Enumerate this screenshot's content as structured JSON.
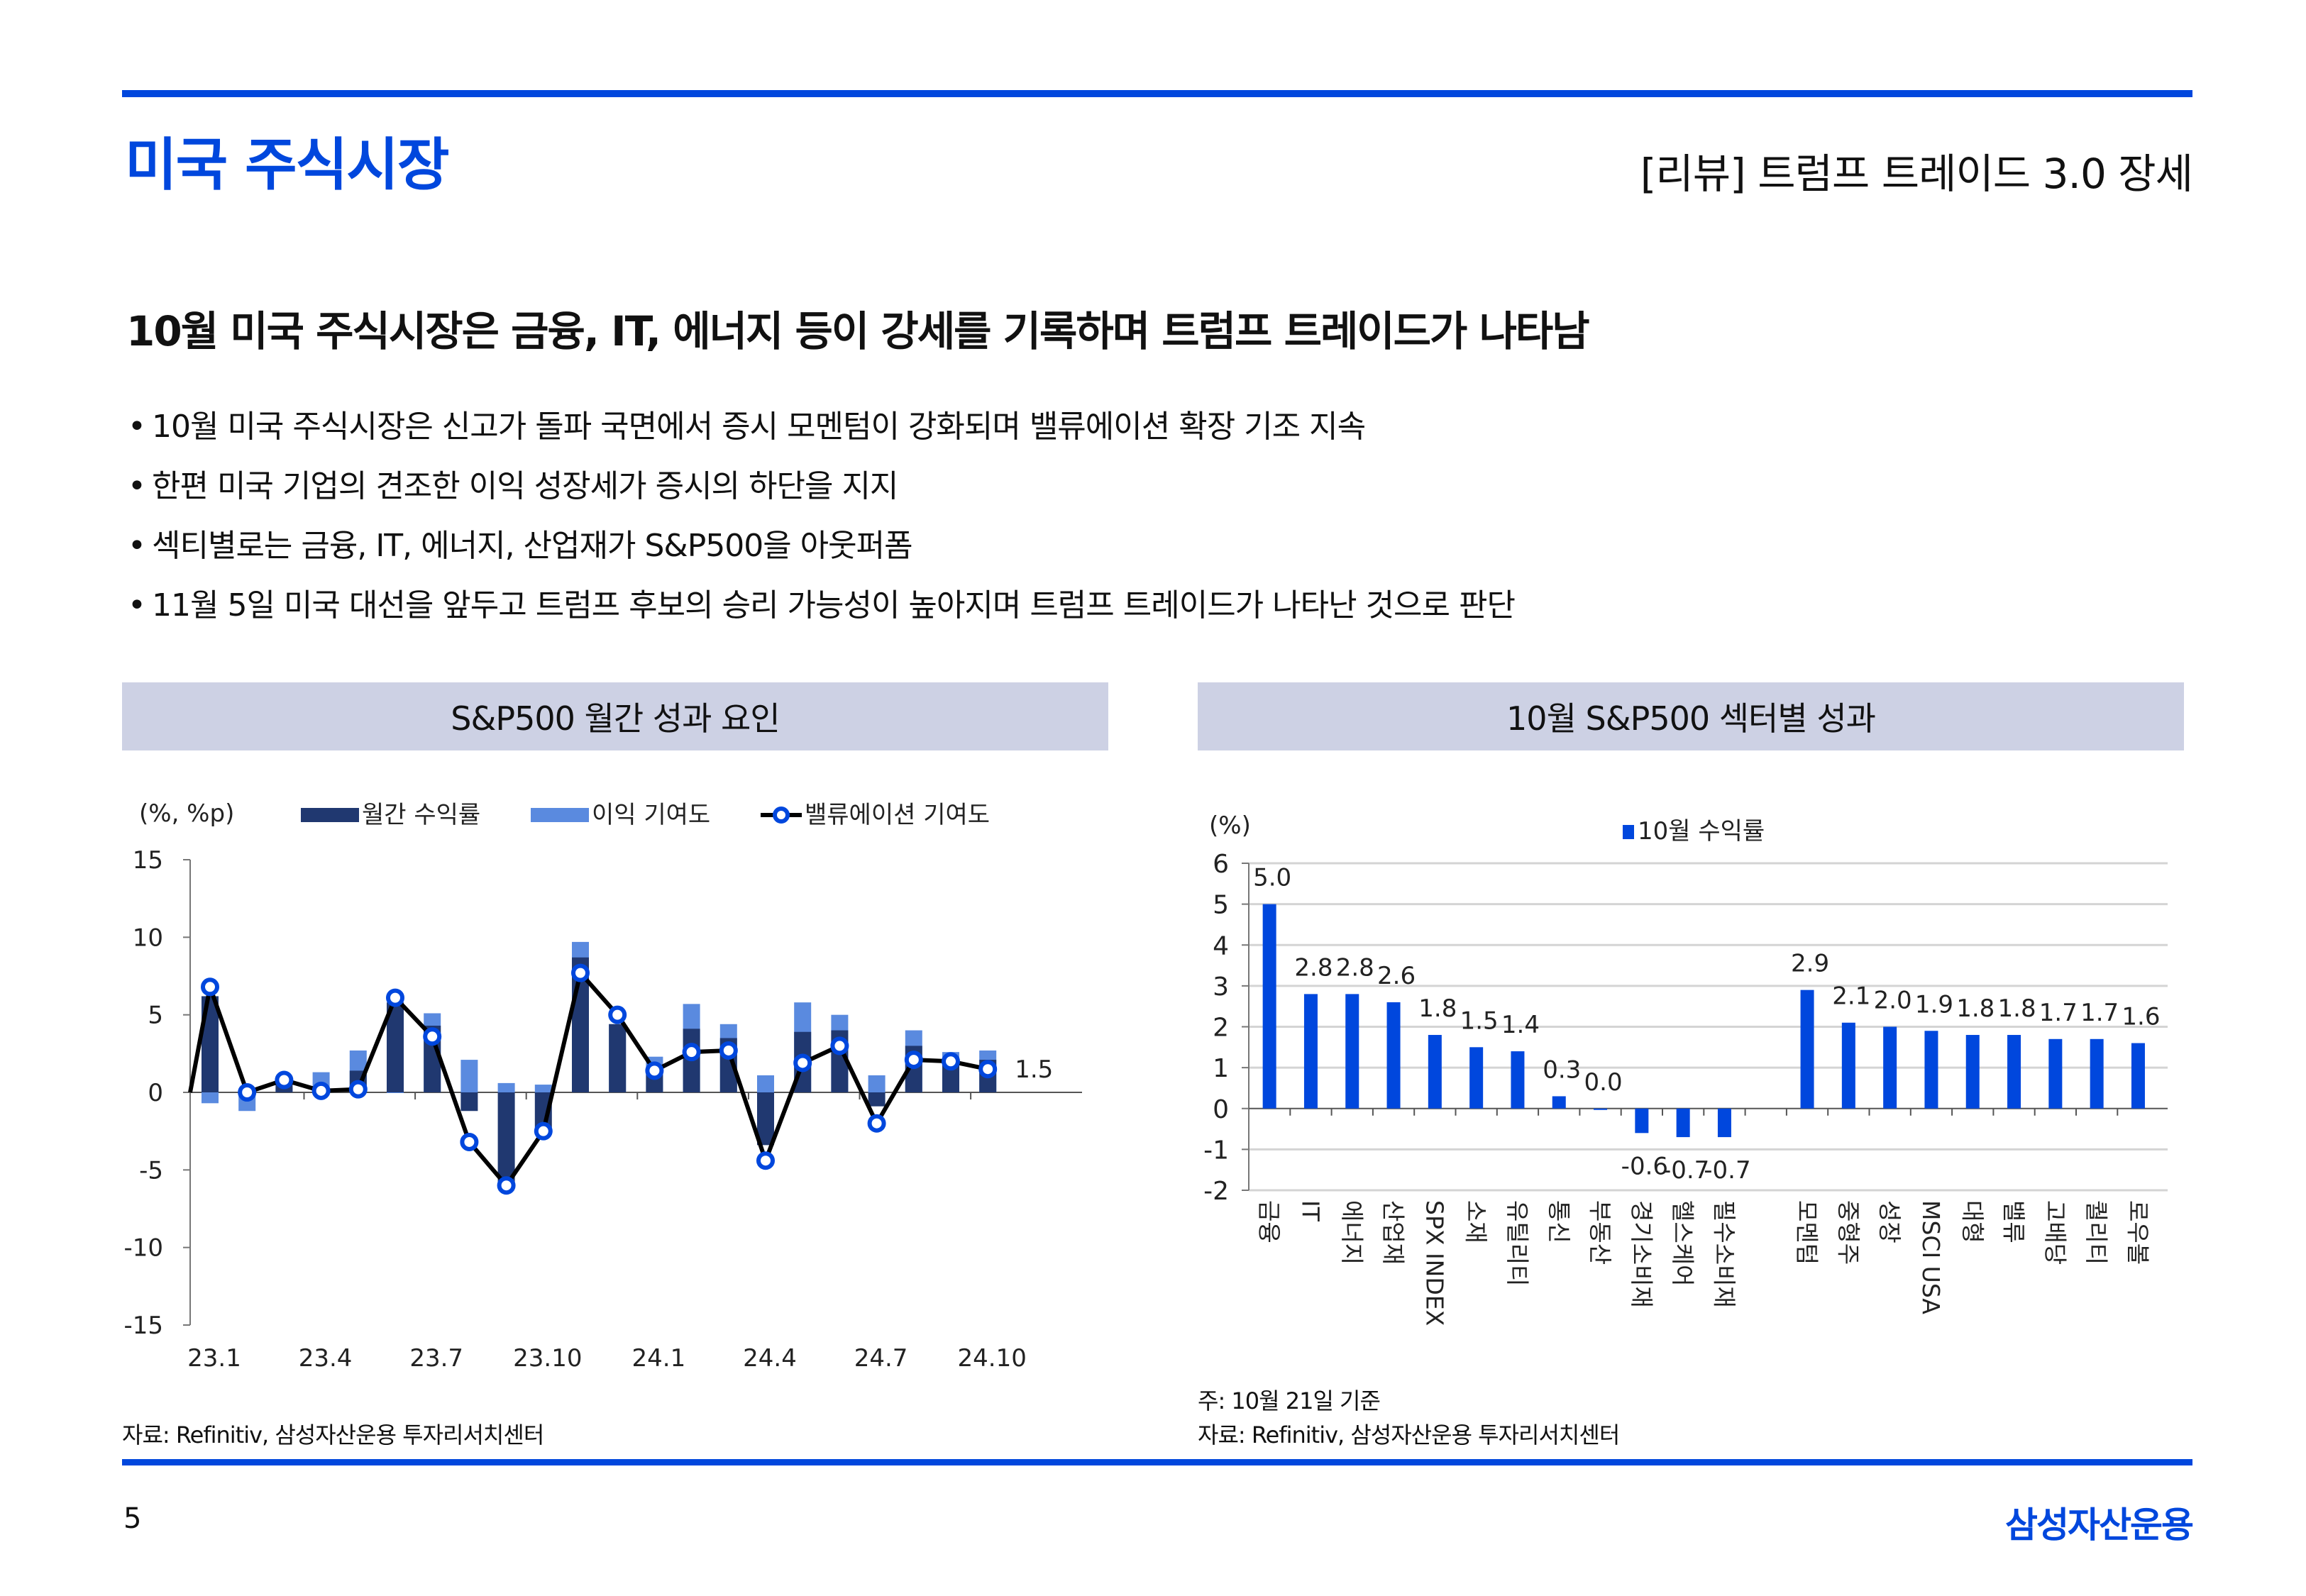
{
  "header": {
    "section_title": "미국 주식시장",
    "report_title": "[리뷰] 트럼프 트레이드 3.0 장세"
  },
  "headline": "10월 미국 주식시장은 금융, IT, 에너지 등이 강세를 기록하며 트럼프 트레이드가 나타남",
  "bullets": [
    "10월 미국 주식시장은 신고가 돌파 국면에서 증시 모멘텀이 강화되며 밸류에이션 확장 기조 지속",
    "한편 미국 기업의 견조한 이익 성장세가 증시의 하단을 지지",
    "섹티별로는 금융, IT, 에너지, 산업재가 S&P500을 아웃퍼폼",
    "11월 5일 미국 대선을 앞두고 트럼프 후보의 승리 가능성이 높아지며 트럼프 트레이드가 나타난 것으로 판단"
  ],
  "bullet_marker": "•",
  "left_panel": {
    "title": "S&P500 월간 성과 요인",
    "source": "자료: Refinitiv, 삼성자산운용 투자리서치센터"
  },
  "right_panel": {
    "title": "10월 S&P500 섹터별 성과",
    "footnote": "주: 10월 21일 기준",
    "source": "자료: Refinitiv, 삼성자산운용 투자리서치센터"
  },
  "footer": {
    "page_number": "5",
    "brand": "삼성자산운용"
  },
  "colors": {
    "brand_blue": "#0047DD",
    "header_band": "#CDD1E4",
    "monthly_return": "#203870",
    "earnings_contribution": "#5A8ADF",
    "valuation_line": "#000000",
    "valuation_marker": "#0047DD",
    "sector_bar": "#0047DD"
  },
  "chart_data": [
    {
      "type": "bar",
      "subtype": "bar+line",
      "title": "S&P500 월간 성과 요인",
      "ylabel": "(%, %p)",
      "ylim": [
        -15,
        15
      ],
      "yticks": [
        15,
        10,
        5,
        0,
        -5,
        -10,
        -15
      ],
      "x": [
        "23.1",
        "23.2",
        "23.3",
        "23.4",
        "23.5",
        "23.6",
        "23.7",
        "23.8",
        "23.9",
        "23.10",
        "23.11",
        "23.12",
        "24.1",
        "24.2",
        "24.3",
        "24.4",
        "24.5",
        "24.6",
        "24.7",
        "24.8",
        "24.9",
        "24.10"
      ],
      "xtick_labels": [
        "23.1",
        "23.4",
        "23.7",
        "23.10",
        "24.1",
        "24.4",
        "24.7",
        "24.10"
      ],
      "legend": [
        "월간 수익률",
        "이익 기여도",
        "밸류에이션 기여도"
      ],
      "legend_position": "top",
      "series": [
        {
          "name": "월간 수익률",
          "type": "bar",
          "values": [
            6.2,
            0.0,
            0.6,
            0.3,
            1.4,
            5.8,
            4.3,
            -1.2,
            -5.8,
            -2.4,
            8.7,
            4.4,
            1.4,
            4.1,
            3.5,
            -3.4,
            3.9,
            4.0,
            -0.9,
            3.0,
            2.1,
            2.1
          ]
        },
        {
          "name": "이익 기여도",
          "type": "bar",
          "values": [
            -0.7,
            -1.2,
            0.3,
            1.3,
            2.7,
            0.0,
            5.1,
            2.1,
            0.6,
            0.5,
            9.7,
            4.4,
            2.3,
            5.7,
            4.4,
            1.1,
            5.8,
            5.0,
            1.1,
            4.0,
            2.6,
            2.7
          ]
        },
        {
          "name": "밸류에이션 기여도",
          "type": "line",
          "values": [
            6.8,
            0.0,
            0.8,
            0.1,
            0.2,
            6.1,
            3.6,
            -3.2,
            -6.0,
            -2.5,
            7.7,
            5.0,
            1.4,
            2.6,
            2.7,
            -4.4,
            1.9,
            3.0,
            -2.0,
            2.1,
            2.0,
            1.5
          ]
        }
      ],
      "annotations": [
        {
          "label": "1.5",
          "at": "24.10"
        }
      ]
    },
    {
      "type": "bar",
      "title": "10월 S&P500 섹터별 성과",
      "ylabel": "(%)",
      "ylim": [
        -2,
        6
      ],
      "yticks": [
        6,
        5,
        4,
        3,
        2,
        1,
        0,
        -1,
        -2
      ],
      "grid": true,
      "legend": [
        "10월 수익률"
      ],
      "legend_position": "top",
      "categories": [
        "금융",
        "IT",
        "에너지",
        "산업재",
        "SPX INDEX",
        "소재",
        "유틸리티",
        "통신",
        "부동산",
        "경기소비재",
        "헬스케어",
        "필수소비재",
        "",
        "모멘텀",
        "중형주",
        "성장",
        "MSCI USA",
        "대형",
        "밸류",
        "고배당",
        "퀄리티",
        "로우볼"
      ],
      "values": [
        5.0,
        2.8,
        2.8,
        2.6,
        1.8,
        1.5,
        1.4,
        0.3,
        0.0,
        -0.6,
        -0.7,
        -0.7,
        null,
        2.9,
        2.1,
        2.0,
        1.9,
        1.8,
        1.8,
        1.7,
        1.7,
        1.6
      ],
      "value_labels": [
        "5.0",
        "2.8",
        "2.8",
        "2.6",
        "1.8",
        "1.5",
        "1.4",
        "0.3",
        "0.0",
        "-0.6",
        "-0.7",
        "-0.7",
        "",
        "2.9",
        "2.1",
        "2.0",
        "1.9",
        "1.8",
        "1.8",
        "1.7",
        "1.7",
        "1.6"
      ]
    }
  ]
}
